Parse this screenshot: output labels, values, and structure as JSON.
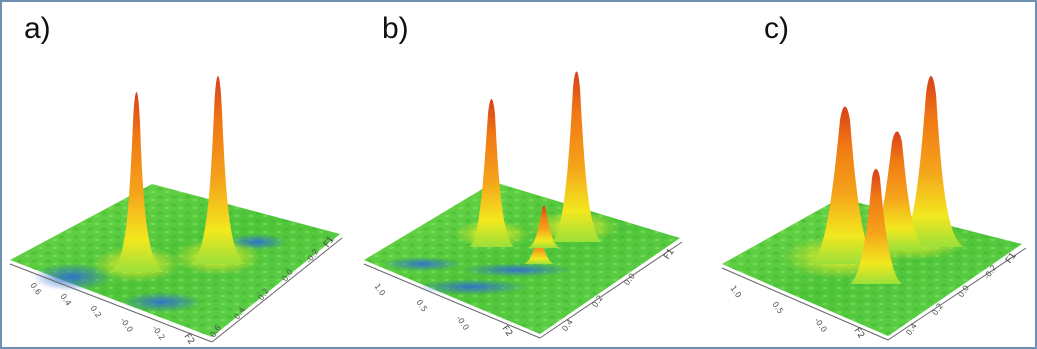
{
  "figure": {
    "panels": [
      {
        "label": "a)",
        "f2_ticks": [
          "0.6",
          "0.4",
          "0.2",
          "-0.0",
          "-0.2",
          "F2"
        ],
        "f1_ticks": [
          "0.6",
          "0.4",
          "0.2",
          "0.0",
          "-0.2",
          "F1"
        ]
      },
      {
        "label": "b)",
        "f2_ticks": [
          "1.0",
          "0.5",
          "-0.0",
          "F2"
        ],
        "f1_ticks": [
          "0.4",
          "0.2",
          "0.0",
          "F1"
        ]
      },
      {
        "label": "c)",
        "f2_ticks": [
          "1.0",
          "0.5",
          "-0.0",
          "F2"
        ],
        "f1_ticks": [
          "0.4",
          "0.2",
          "0.0",
          "-0.2",
          "F1"
        ]
      }
    ],
    "colors": {
      "border": "#6f8fb2",
      "surface_green": "#5fd13a",
      "surface_blue": "#3a7fd6",
      "peak_yellow": "#f2e81e",
      "peak_orange": "#f07a14",
      "peak_red": "#d8401a"
    }
  }
}
